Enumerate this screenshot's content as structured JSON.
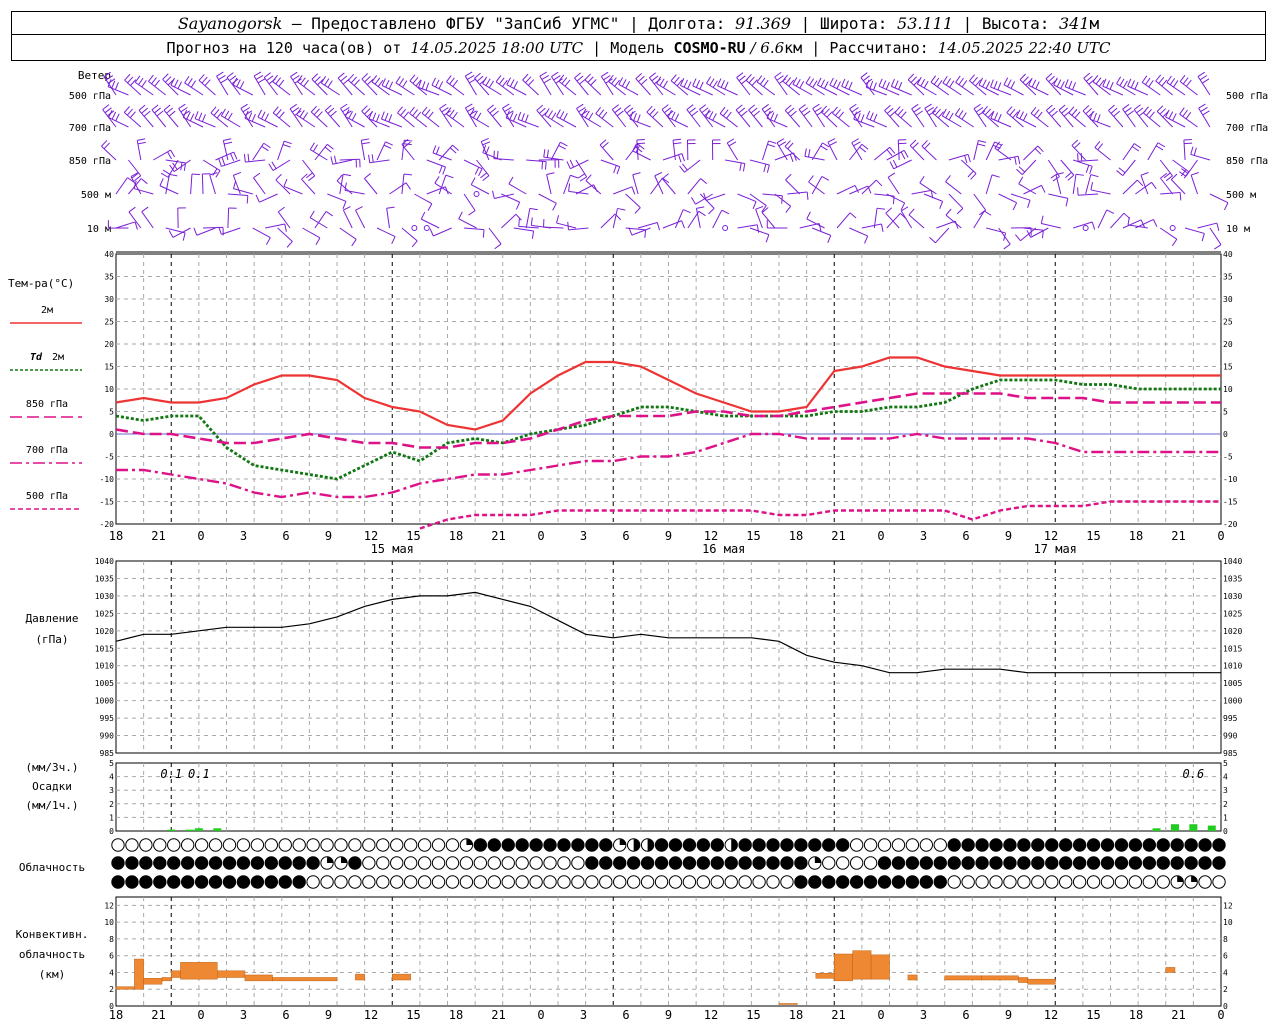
{
  "header": {
    "station": "Sayanogorsk",
    "dash": " — ",
    "provider": "Предоставлено ФГБУ \"ЗапСиб УГМС\"",
    "lon_label": "Долгота:",
    "lon_value": "91.369",
    "lat_label": "Широта:",
    "lat_value": "53.111",
    "alt_label": "Высота:",
    "alt_value": "341",
    "alt_unit": "м",
    "forecast_label": "Прогноз на 120 часа(ов) от",
    "forecast_start": "14.05.2025 18:00 UTC",
    "model_label": "Модель",
    "model_name": "COSMO-RU",
    "model_res": " / 6.6",
    "model_res_unit": "км",
    "calc_label": "Рассчитано:",
    "calc_time": "14.05.2025 22:40 UTC",
    "sep": " | "
  },
  "colors": {
    "wind": "#7a1fd6",
    "t2m": "#ee3333",
    "td2m": "#117711",
    "t850": "#dd1188",
    "precip": "#22cc22",
    "conv": "#ee8833",
    "grid": "#aaaaaa"
  },
  "chart_data": [
    {
      "id": "wind",
      "type": "wind_barbs",
      "title": "Ветер",
      "levels": [
        "500 гПа",
        "700 гПа",
        "850 гПа",
        "500 м",
        "10  м"
      ]
    },
    {
      "id": "temperature",
      "type": "line",
      "title": "Тем-ра(°С)",
      "ylim": [
        -20,
        40
      ],
      "yticks": [
        -20,
        -15,
        -10,
        -5,
        0,
        5,
        10,
        15,
        20,
        25,
        30,
        35,
        40
      ],
      "x_tick_labels": [
        "18",
        "21",
        "0",
        "3",
        "6",
        "9",
        "12",
        "15",
        "18",
        "21",
        "0",
        "3",
        "6",
        "9",
        "12",
        "15",
        "18",
        "21",
        "0",
        "3",
        "6",
        "9",
        "12",
        "15",
        "18",
        "21",
        "0"
      ],
      "date_labels": [
        "15 мая",
        "16 мая",
        "17 мая"
      ],
      "series": [
        {
          "name": "2м",
          "style": "solid",
          "x": [
            0,
            3,
            6,
            9,
            12,
            15,
            18,
            21,
            24,
            27,
            30,
            33,
            36,
            39,
            42,
            45,
            48,
            51,
            54,
            57,
            60,
            63,
            66,
            69,
            72,
            75,
            78,
            81,
            84,
            87,
            90,
            93,
            96,
            99,
            102,
            105,
            108,
            111,
            114,
            117,
            120
          ],
          "values": [
            7,
            8,
            7,
            7,
            8,
            11,
            13,
            13,
            12,
            8,
            6,
            5,
            2,
            1,
            3,
            9,
            13,
            16,
            16,
            15,
            12,
            9,
            7,
            5,
            5,
            6,
            14,
            15,
            17,
            17,
            15,
            14,
            13,
            13,
            13,
            13,
            13,
            13,
            13,
            13,
            13
          ]
        },
        {
          "name": "Td 2м",
          "style": "dotted",
          "x": [
            0,
            3,
            6,
            9,
            12,
            15,
            18,
            21,
            24,
            27,
            30,
            33,
            36,
            39,
            42,
            45,
            48,
            51,
            54,
            57,
            60,
            63,
            66,
            69,
            72,
            75,
            78,
            81,
            84,
            87,
            90,
            93,
            96,
            99,
            102,
            105,
            108,
            111,
            114,
            117,
            120
          ],
          "values": [
            4,
            3,
            4,
            4,
            -3,
            -7,
            -8,
            -9,
            -10,
            -7,
            -4,
            -6,
            -2,
            -1,
            -2,
            0,
            1,
            2,
            4,
            6,
            6,
            5,
            4,
            4,
            4,
            4,
            5,
            5,
            6,
            6,
            7,
            10,
            12,
            12,
            12,
            11,
            11,
            10,
            10,
            10,
            10
          ]
        },
        {
          "name": "850 гПа",
          "style": "dashed",
          "x": [
            0,
            3,
            6,
            9,
            12,
            15,
            18,
            21,
            24,
            27,
            30,
            33,
            36,
            39,
            42,
            45,
            48,
            51,
            54,
            57,
            60,
            63,
            66,
            69,
            72,
            75,
            78,
            81,
            84,
            87,
            90,
            93,
            96,
            99,
            102,
            105,
            108,
            111,
            114,
            117,
            120
          ],
          "values": [
            1,
            0,
            0,
            -1,
            -2,
            -2,
            -1,
            0,
            -1,
            -2,
            -2,
            -3,
            -3,
            -2,
            -2,
            -1,
            1,
            3,
            4,
            4,
            4,
            5,
            5,
            4,
            4,
            5,
            6,
            7,
            8,
            9,
            9,
            9,
            9,
            8,
            8,
            8,
            7,
            7,
            7,
            7,
            7
          ]
        },
        {
          "name": "700 гПа",
          "style": "dashdot",
          "x": [
            0,
            3,
            6,
            9,
            12,
            15,
            18,
            21,
            24,
            27,
            30,
            33,
            36,
            39,
            42,
            45,
            48,
            51,
            54,
            57,
            60,
            63,
            66,
            69,
            72,
            75,
            78,
            81,
            84,
            87,
            90,
            93,
            96,
            99,
            102,
            105,
            108,
            111,
            114,
            117,
            120
          ],
          "values": [
            -8,
            -8,
            -9,
            -10,
            -11,
            -13,
            -14,
            -13,
            -14,
            -14,
            -13,
            -11,
            -10,
            -9,
            -9,
            -8,
            -7,
            -6,
            -6,
            -5,
            -5,
            -4,
            -2,
            0,
            0,
            -1,
            -1,
            -1,
            -1,
            0,
            -1,
            -1,
            -1,
            -1,
            -2,
            -4,
            -4,
            -4,
            -4,
            -4,
            -4
          ]
        },
        {
          "name": "500 гПа",
          "style": "dense-dash",
          "x": [
            33,
            36,
            39,
            42,
            45,
            48,
            51,
            54,
            57,
            60,
            63,
            66,
            69,
            72,
            75,
            78,
            81,
            84,
            87,
            90,
            93,
            96,
            99,
            102,
            105,
            108,
            111,
            114,
            117,
            120
          ],
          "values": [
            -21,
            -19,
            -18,
            -18,
            -18,
            -17,
            -17,
            -17,
            -17,
            -17,
            -17,
            -17,
            -17,
            -18,
            -18,
            -17,
            -17,
            -17,
            -17,
            -17,
            -19,
            -17,
            -16,
            -16,
            -16,
            -15,
            -15,
            -15,
            -15,
            -15
          ]
        }
      ]
    },
    {
      "id": "pressure",
      "type": "line",
      "title": "Давление",
      "unit": "(гПа)",
      "ylim": [
        985,
        1040
      ],
      "yticks": [
        985,
        990,
        995,
        1000,
        1005,
        1010,
        1015,
        1020,
        1025,
        1030,
        1035,
        1040
      ],
      "series": [
        {
          "x": [
            0,
            3,
            6,
            9,
            12,
            15,
            18,
            21,
            24,
            27,
            30,
            33,
            36,
            39,
            42,
            45,
            48,
            51,
            54,
            57,
            60,
            63,
            66,
            69,
            72,
            75,
            78,
            81,
            84,
            87,
            90,
            93,
            96,
            99,
            102,
            105,
            108,
            111,
            114,
            117,
            120
          ],
          "values": [
            1017,
            1019,
            1019,
            1020,
            1021,
            1021,
            1021,
            1022,
            1024,
            1027,
            1029,
            1030,
            1030,
            1031,
            1029,
            1027,
            1023,
            1019,
            1018,
            1019,
            1018,
            1018,
            1018,
            1018,
            1017,
            1013,
            1011,
            1010,
            1008,
            1008,
            1009,
            1009,
            1009,
            1008,
            1008,
            1008,
            1008,
            1008,
            1008,
            1008,
            1008
          ]
        }
      ]
    },
    {
      "id": "precipitation",
      "type": "bar",
      "title": "Осадки",
      "unit_top": "(мм/3ч.)",
      "unit_bottom": "(мм/1ч.)",
      "ylim": [
        0,
        5
      ],
      "yticks": [
        0,
        1,
        2,
        3,
        4,
        5
      ],
      "labels": [
        {
          "x": 6,
          "text": "0.1"
        },
        {
          "x": 9,
          "text": "0.1"
        },
        {
          "x": 117,
          "text": "0.6"
        }
      ],
      "bars": [
        {
          "x": 6,
          "value": 0.1
        },
        {
          "x": 8,
          "value": 0.1
        },
        {
          "x": 9,
          "value": 0.2
        },
        {
          "x": 11,
          "value": 0.2
        },
        {
          "x": 113,
          "value": 0.2
        },
        {
          "x": 115,
          "value": 0.5
        },
        {
          "x": 117,
          "value": 0.5
        },
        {
          "x": 119,
          "value": 0.4
        }
      ]
    },
    {
      "id": "cloudiness",
      "type": "symbols",
      "title": "Облачность",
      "rows": [
        "oooooooooooooooooooooooooooqbbbbbbbbbbbqhhbbbbbbhbbbbbbbbboooooooobbbbbbbbbbbbbbbbbbbbbb",
        "bbbbbbbbbbbbbbbbbqqbooooooooooooooooooobbbbbbbbbbbbbbbbbbqooooobbbbbbbbbbbbbbbbbbbbbbbbbbbbb",
        "bbbbbbbbbbbbbbbboooooooooooooooooooooooooooooooooooooooooobbbbbbbbbbbbboooooooooooooooooooqqooo"
      ]
    },
    {
      "id": "convective",
      "type": "bar",
      "title": "Конвективн.",
      "title2": "облачность",
      "unit": "(км)",
      "ylim": [
        0,
        13
      ],
      "yticks": [
        0,
        2,
        4,
        6,
        8,
        10,
        12
      ],
      "bars": [
        {
          "x0": 0,
          "x1": 2,
          "base": 2,
          "top": 2.3
        },
        {
          "x0": 2,
          "x1": 3,
          "base": 2,
          "top": 5.6
        },
        {
          "x0": 3,
          "x1": 5,
          "base": 2.6,
          "top": 3.3
        },
        {
          "x0": 5,
          "x1": 6,
          "base": 3,
          "top": 3.4
        },
        {
          "x0": 6,
          "x1": 7,
          "base": 3.4,
          "top": 4.2
        },
        {
          "x0": 7,
          "x1": 11,
          "base": 3.2,
          "top": 5.2
        },
        {
          "x0": 11,
          "x1": 14,
          "base": 3.4,
          "top": 4.2
        },
        {
          "x0": 14,
          "x1": 17,
          "base": 3,
          "top": 3.7
        },
        {
          "x0": 17,
          "x1": 24,
          "base": 3,
          "top": 3.4
        },
        {
          "x0": 26,
          "x1": 27,
          "base": 3.1,
          "top": 3.8
        },
        {
          "x0": 30,
          "x1": 32,
          "base": 3.1,
          "top": 3.8
        },
        {
          "x0": 72,
          "x1": 74,
          "base": 0.2,
          "top": 0.3
        },
        {
          "x0": 76,
          "x1": 78,
          "base": 3.3,
          "top": 3.9
        },
        {
          "x0": 78,
          "x1": 80,
          "base": 3,
          "top": 6.2
        },
        {
          "x0": 80,
          "x1": 82,
          "base": 3.2,
          "top": 6.6
        },
        {
          "x0": 82,
          "x1": 84,
          "base": 3.2,
          "top": 6.1
        },
        {
          "x0": 86,
          "x1": 87,
          "base": 3.1,
          "top": 3.7
        },
        {
          "x0": 90,
          "x1": 94,
          "base": 3.1,
          "top": 3.6
        },
        {
          "x0": 94,
          "x1": 98,
          "base": 3.1,
          "top": 3.6
        },
        {
          "x0": 98,
          "x1": 99,
          "base": 2.8,
          "top": 3.4
        },
        {
          "x0": 99,
          "x1": 102,
          "base": 2.6,
          "top": 3.2
        },
        {
          "x0": 114,
          "x1": 115,
          "base": 4,
          "top": 4.6
        }
      ]
    }
  ]
}
